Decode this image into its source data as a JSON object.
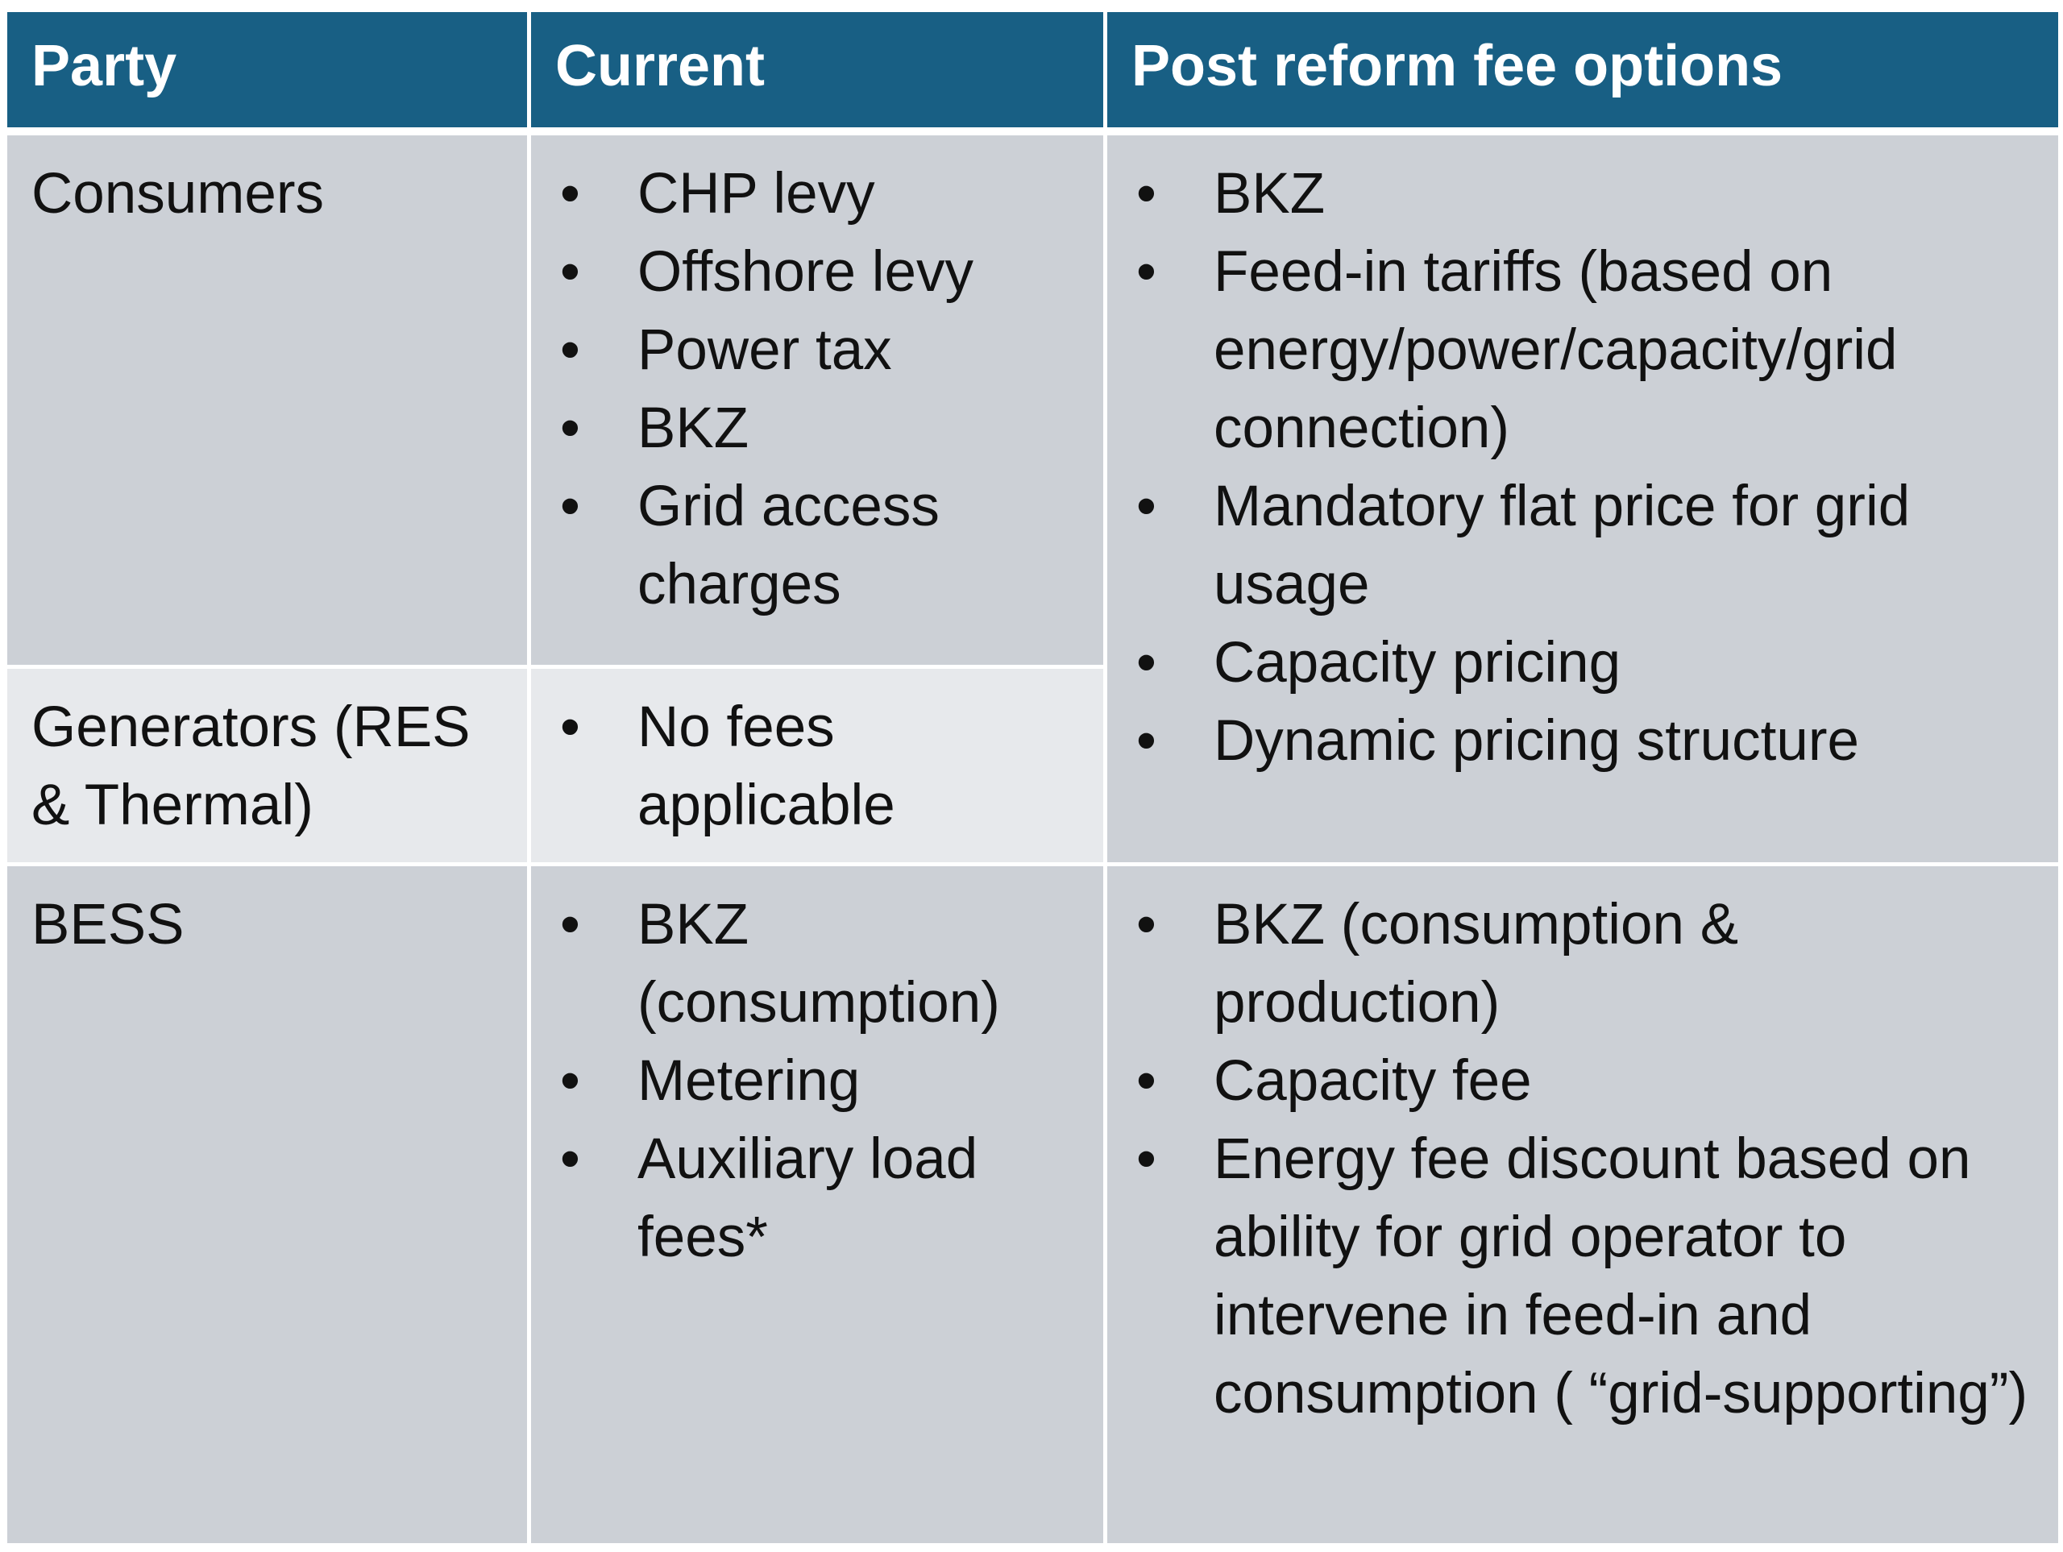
{
  "table": {
    "headers": {
      "party": "Party",
      "current": "Current",
      "post_reform": "Post reform fee options"
    },
    "rows": [
      {
        "party": "Consumers",
        "current": [
          "CHP levy",
          "Offshore levy",
          "Power tax",
          "BKZ",
          "Grid access charges"
        ]
      },
      {
        "party": "Generators (RES & Thermal)",
        "current": [
          "No fees applicable"
        ]
      },
      {
        "party": "BESS",
        "current": [
          "BKZ (consumption)",
          "Metering",
          "Auxiliary load fees*"
        ]
      }
    ],
    "post_reform_consumers_generators": [
      "BKZ",
      "Feed-in tariffs (based on energy/power/capacity/grid connection)",
      "Mandatory flat price for grid usage",
      "Capacity pricing",
      "Dynamic pricing structure"
    ],
    "post_reform_bess": [
      "BKZ (consumption & production)",
      "Capacity fee",
      "Energy fee discount based on ability for grid operator to intervene in feed-in and consumption ( “grid-supporting”)"
    ]
  },
  "colors": {
    "header_bg": "#185f84",
    "row_bg": "#ccd0d6",
    "row_bg_light": "#e7e9ec",
    "border": "#ffffff"
  }
}
